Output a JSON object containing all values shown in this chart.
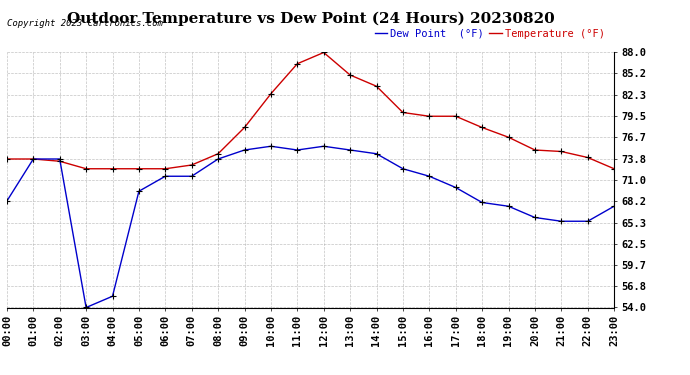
{
  "title": "Outdoor Temperature vs Dew Point (24 Hours) 20230820",
  "copyright": "Copyright 2023 Cartronics.com",
  "legend_dew": "Dew Point  (°F)",
  "legend_temp": "Temperature (°F)",
  "hours": [
    0,
    1,
    2,
    3,
    4,
    5,
    6,
    7,
    8,
    9,
    10,
    11,
    12,
    13,
    14,
    15,
    16,
    17,
    18,
    19,
    20,
    21,
    22,
    23
  ],
  "temperature": [
    73.8,
    73.8,
    73.5,
    72.5,
    72.5,
    72.5,
    72.5,
    73.0,
    74.5,
    78.0,
    82.5,
    86.5,
    88.0,
    85.0,
    83.5,
    80.0,
    79.5,
    79.5,
    78.0,
    76.7,
    75.0,
    74.8,
    74.0,
    72.5
  ],
  "dew_point": [
    68.2,
    73.8,
    73.8,
    54.0,
    55.5,
    69.5,
    71.5,
    71.5,
    73.8,
    75.0,
    75.5,
    75.0,
    75.5,
    75.0,
    74.5,
    72.5,
    71.5,
    70.0,
    68.0,
    67.5,
    66.0,
    65.5,
    65.5,
    67.5
  ],
  "ylim_min": 54.0,
  "ylim_max": 88.0,
  "yticks": [
    54.0,
    56.8,
    59.7,
    62.5,
    65.3,
    68.2,
    71.0,
    73.8,
    76.7,
    79.5,
    82.3,
    85.2,
    88.0
  ],
  "temp_color": "#cc0000",
  "dew_color": "#0000cc",
  "bg_color": "#ffffff",
  "grid_color": "#aaaaaa",
  "title_fontsize": 11,
  "tick_fontsize": 7.5,
  "copyright_fontsize": 6.5,
  "legend_fontsize": 7.5
}
